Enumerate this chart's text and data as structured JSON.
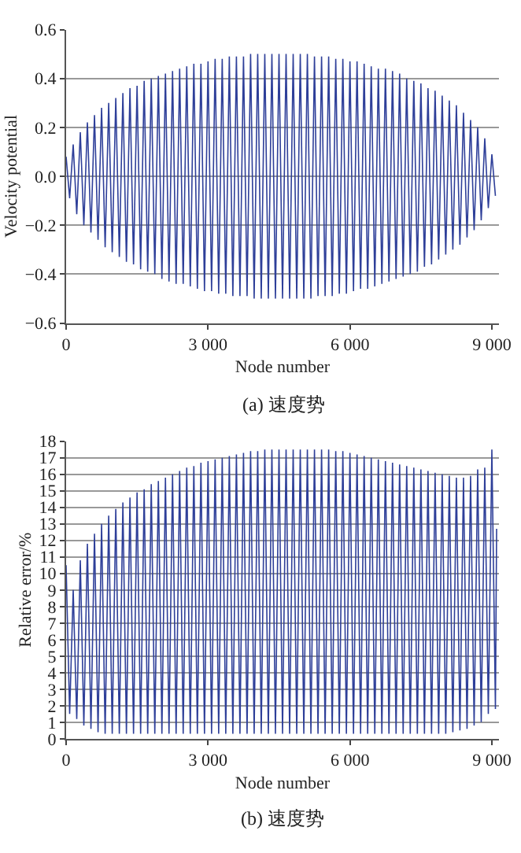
{
  "chart_data": [
    {
      "type": "line",
      "xlabel": "Node number",
      "ylabel": "Velocity potential",
      "annotations": [
        "(a) 速度势"
      ],
      "grid": "y",
      "xlim": [
        0,
        9150
      ],
      "xticks": [
        0,
        {
          "value": 3000,
          "label": "3 000"
        },
        {
          "value": 6000,
          "label": "6 000"
        },
        {
          "value": 9000,
          "label": "9 000"
        }
      ],
      "ylim": [
        -0.6,
        0.6
      ],
      "yticks": [
        {
          "value": -0.6,
          "label": "−0.6"
        },
        {
          "value": -0.4,
          "label": "−0.4"
        },
        {
          "value": -0.2,
          "label": "−0.2"
        },
        {
          "value": 0,
          "label": "0.0"
        },
        {
          "value": 0.2,
          "label": "0.2"
        },
        {
          "value": 0.4,
          "label": "0.4"
        },
        {
          "value": 0.6,
          "label": "0.6"
        }
      ],
      "x": [
        0,
        75,
        150,
        225,
        300,
        375,
        450,
        525,
        600,
        675,
        750,
        825,
        900,
        975,
        1050,
        1125,
        1200,
        1275,
        1350,
        1425,
        1500,
        1575,
        1650,
        1725,
        1800,
        1875,
        1950,
        2025,
        2100,
        2175,
        2250,
        2325,
        2400,
        2475,
        2550,
        2625,
        2700,
        2775,
        2850,
        2925,
        3000,
        3075,
        3150,
        3225,
        3300,
        3375,
        3450,
        3525,
        3600,
        3675,
        3750,
        3825,
        3900,
        3975,
        4050,
        4125,
        4200,
        4275,
        4350,
        4425,
        4500,
        4575,
        4650,
        4725,
        4800,
        4875,
        4950,
        5025,
        5100,
        5175,
        5250,
        5325,
        5400,
        5475,
        5550,
        5625,
        5700,
        5775,
        5850,
        5925,
        6000,
        6075,
        6150,
        6225,
        6300,
        6375,
        6450,
        6525,
        6600,
        6675,
        6750,
        6825,
        6900,
        6975,
        7050,
        7125,
        7200,
        7275,
        7350,
        7425,
        7500,
        7575,
        7650,
        7725,
        7800,
        7875,
        7950,
        8025,
        8100,
        8175,
        8250,
        8325,
        8400,
        8475,
        8550,
        8625,
        8700,
        8775,
        8850,
        8925,
        9000,
        9075
      ],
      "series": [
        {
          "color": "#2e3f99",
          "values": [
            0.08,
            -0.09,
            0.13,
            -0.155,
            0.18,
            -0.2,
            0.22,
            -0.23,
            0.25,
            -0.26,
            0.28,
            -0.29,
            0.3,
            -0.31,
            0.32,
            -0.33,
            0.34,
            -0.35,
            0.36,
            -0.36,
            0.37,
            -0.38,
            0.39,
            -0.39,
            0.4,
            -0.4,
            0.41,
            -0.42,
            0.42,
            -0.43,
            0.43,
            -0.44,
            0.44,
            -0.44,
            0.45,
            -0.45,
            0.46,
            -0.46,
            0.46,
            -0.47,
            0.47,
            -0.47,
            0.48,
            -0.48,
            0.48,
            -0.48,
            0.49,
            -0.49,
            0.49,
            -0.49,
            0.49,
            -0.49,
            0.5,
            -0.5,
            0.5,
            -0.5,
            0.5,
            -0.5,
            0.5,
            -0.5,
            0.5,
            -0.5,
            0.5,
            -0.5,
            0.5,
            -0.5,
            0.5,
            -0.5,
            0.5,
            -0.5,
            0.49,
            -0.49,
            0.49,
            -0.49,
            0.49,
            -0.49,
            0.48,
            -0.48,
            0.48,
            -0.48,
            0.47,
            -0.47,
            0.47,
            -0.46,
            0.46,
            -0.46,
            0.45,
            -0.45,
            0.44,
            -0.44,
            0.44,
            -0.43,
            0.43,
            -0.42,
            0.42,
            -0.41,
            0.4,
            -0.4,
            0.39,
            -0.39,
            0.38,
            -0.37,
            0.36,
            -0.36,
            0.35,
            -0.34,
            0.33,
            -0.32,
            0.31,
            -0.3,
            0.29,
            -0.28,
            0.26,
            -0.25,
            0.23,
            -0.22,
            0.2,
            -0.18,
            0.155,
            -0.13,
            0.09,
            -0.08
          ]
        }
      ]
    },
    {
      "type": "line",
      "xlabel": "Node number",
      "ylabel": "Relative error/%",
      "annotations": [
        "(b) 速度势"
      ],
      "grid": "y",
      "xlim": [
        0,
        9150
      ],
      "xticks": [
        0,
        {
          "value": 3000,
          "label": "3 000"
        },
        {
          "value": 6000,
          "label": "6 000"
        },
        {
          "value": 9000,
          "label": "9 000"
        }
      ],
      "ylim": [
        0,
        18
      ],
      "yticks": [
        0,
        1,
        2,
        3,
        4,
        5,
        6,
        7,
        8,
        9,
        10,
        11,
        12,
        13,
        14,
        15,
        16,
        17,
        18
      ],
      "x": [
        0,
        75,
        150,
        225,
        300,
        375,
        450,
        525,
        600,
        675,
        750,
        825,
        900,
        975,
        1050,
        1125,
        1200,
        1275,
        1350,
        1425,
        1500,
        1575,
        1650,
        1725,
        1800,
        1875,
        1950,
        2025,
        2100,
        2175,
        2250,
        2325,
        2400,
        2475,
        2550,
        2625,
        2700,
        2775,
        2850,
        2925,
        3000,
        3075,
        3150,
        3225,
        3300,
        3375,
        3450,
        3525,
        3600,
        3675,
        3750,
        3825,
        3900,
        3975,
        4050,
        4125,
        4200,
        4275,
        4350,
        4425,
        4500,
        4575,
        4650,
        4725,
        4800,
        4875,
        4950,
        5025,
        5100,
        5175,
        5250,
        5325,
        5400,
        5475,
        5550,
        5625,
        5700,
        5775,
        5850,
        5925,
        6000,
        6075,
        6150,
        6225,
        6300,
        6375,
        6450,
        6525,
        6600,
        6675,
        6750,
        6825,
        6900,
        6975,
        7050,
        7125,
        7200,
        7275,
        7350,
        7425,
        7500,
        7575,
        7650,
        7725,
        7800,
        7875,
        7950,
        8025,
        8100,
        8175,
        8250,
        8325,
        8400,
        8475,
        8550,
        8625,
        8700,
        8775,
        8850,
        8925,
        9000,
        9075,
        9100
      ],
      "series": [
        {
          "color": "#2e3f99",
          "values": [
            10.5,
            1.5,
            9.0,
            1.2,
            10.8,
            0.8,
            11.8,
            0.6,
            12.4,
            0.4,
            13.0,
            0.3,
            13.5,
            0.3,
            13.9,
            0.3,
            14.3,
            0.3,
            14.6,
            0.3,
            14.9,
            0.3,
            15.1,
            0.3,
            15.4,
            0.3,
            15.6,
            0.3,
            15.8,
            0.3,
            16.0,
            0.3,
            16.2,
            0.3,
            16.4,
            0.3,
            16.5,
            0.3,
            16.7,
            0.3,
            16.8,
            0.3,
            16.9,
            0.3,
            17.0,
            0.3,
            17.1,
            0.3,
            17.2,
            0.3,
            17.3,
            0.3,
            17.4,
            0.3,
            17.4,
            0.3,
            17.5,
            0.3,
            17.5,
            0.3,
            17.5,
            0.3,
            17.5,
            0.3,
            17.5,
            0.3,
            17.5,
            0.3,
            17.5,
            0.3,
            17.5,
            0.3,
            17.5,
            0.3,
            17.5,
            0.3,
            17.4,
            0.3,
            17.4,
            0.3,
            17.3,
            0.3,
            17.2,
            0.3,
            17.1,
            0.3,
            17.0,
            0.3,
            16.9,
            0.3,
            16.8,
            0.3,
            16.7,
            0.3,
            16.6,
            0.3,
            16.5,
            0.3,
            16.4,
            0.3,
            16.3,
            0.3,
            16.2,
            0.3,
            16.1,
            0.3,
            16.0,
            0.3,
            15.9,
            0.4,
            15.8,
            0.5,
            15.8,
            0.6,
            15.9,
            0.8,
            16.3,
            1.0,
            16.4,
            1.5,
            17.5,
            1.8,
            12.7
          ]
        }
      ]
    }
  ]
}
